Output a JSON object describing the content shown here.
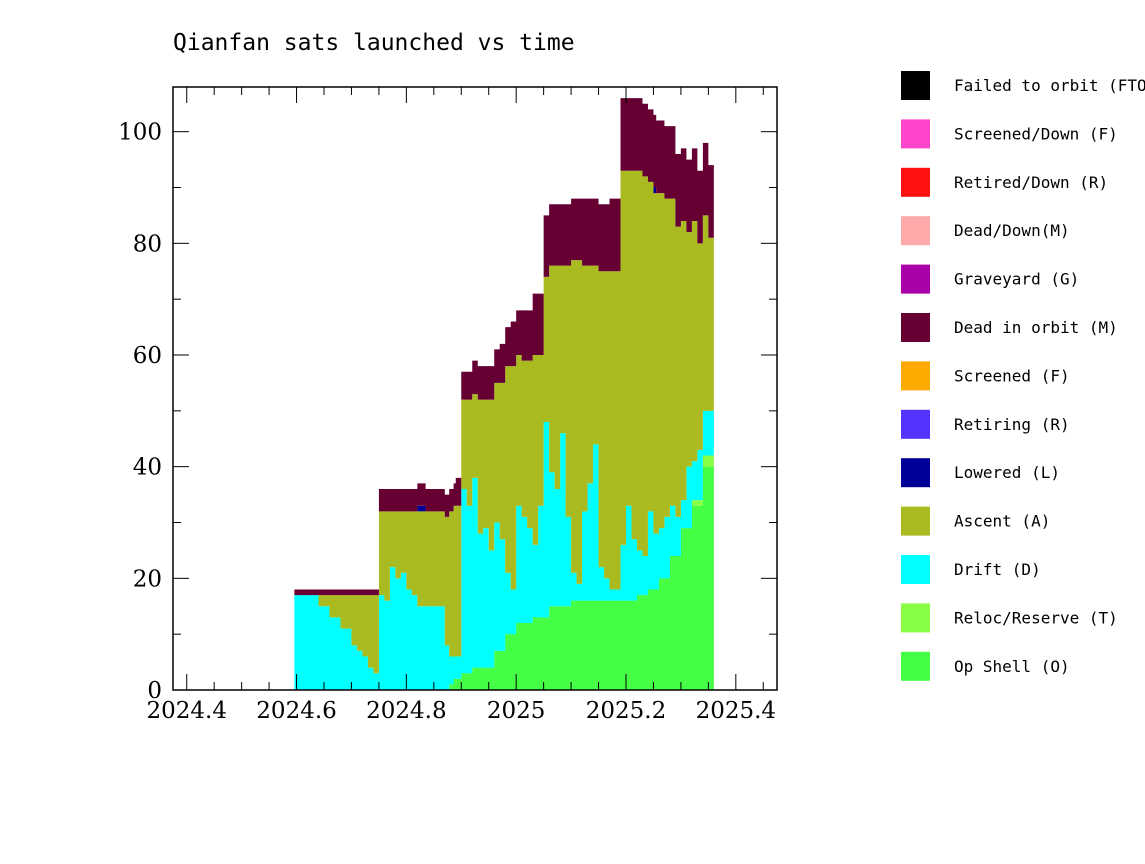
{
  "chart_data": {
    "type": "area",
    "title": "Qianfan sats launched vs time",
    "xlabel": "",
    "ylabel": "",
    "xlim": [
      2024.375,
      2025.475
    ],
    "ylim": [
      0,
      108
    ],
    "x_ticks": [
      {
        "value": 2024.4,
        "label": "2024.4"
      },
      {
        "value": 2024.6,
        "label": "2024.6"
      },
      {
        "value": 2024.8,
        "label": "2024.8"
      },
      {
        "value": 2025.0,
        "label": "2025"
      },
      {
        "value": 2025.2,
        "label": "2025.2"
      },
      {
        "value": 2025.4,
        "label": "2025.4"
      }
    ],
    "y_ticks": [
      {
        "value": 0,
        "label": "0"
      },
      {
        "value": 20,
        "label": "20"
      },
      {
        "value": 40,
        "label": "40"
      },
      {
        "value": 60,
        "label": "60"
      },
      {
        "value": 80,
        "label": "80"
      },
      {
        "value": 100,
        "label": "100"
      }
    ],
    "grid": false,
    "legend_position": "right",
    "legend": [
      {
        "label": "Failed to orbit (FTO)",
        "color": "#000000"
      },
      {
        "label": "Screened/Down (F)",
        "color": "#ff44cc"
      },
      {
        "label": "Retired/Down (R)",
        "color": "#ff1111"
      },
      {
        "label": "Dead/Down(M)",
        "color": "#ffaaaa"
      },
      {
        "label": "Graveyard (G)",
        "color": "#aa00aa"
      },
      {
        "label": "Dead in orbit (M)",
        "color": "#660033"
      },
      {
        "label": "Screened (F)",
        "color": "#ffaa00"
      },
      {
        "label": "Retiring (R)",
        "color": "#5533ff"
      },
      {
        "label": "Lowered (L)",
        "color": "#000099"
      },
      {
        "label": "Ascent (A)",
        "color": "#aabb22"
      },
      {
        "label": "Drift (D)",
        "color": "#00ffff"
      },
      {
        "label": "Reloc/Reserve (T)",
        "color": "#88ff44"
      },
      {
        "label": "Op Shell (O)",
        "color": "#44ff44"
      }
    ],
    "series": [
      {
        "name": "Op Shell (O)",
        "color": "#44ff44",
        "x": [
          2024.596,
          2024.87,
          2024.878,
          2024.886,
          2024.894,
          2024.9,
          2024.92,
          2024.94,
          2024.96,
          2024.98,
          2025.0,
          2025.03,
          2025.06,
          2025.1,
          2025.14,
          2025.18,
          2025.2,
          2025.22,
          2025.24,
          2025.26,
          2025.28,
          2025.3,
          2025.32,
          2025.34,
          2025.36
        ],
        "values": [
          0,
          0,
          1,
          2,
          2,
          3,
          4,
          4,
          7,
          10,
          12,
          13,
          15,
          16,
          16,
          16,
          16,
          17,
          18,
          20,
          24,
          29,
          33,
          40,
          48
        ]
      },
      {
        "name": "Reloc/Reserve (T)",
        "color": "#88ff44",
        "x": [
          2024.596,
          2025.3,
          2025.32,
          2025.34,
          2025.36
        ],
        "values": [
          0,
          0,
          1,
          2,
          2
        ]
      },
      {
        "name": "Drift (D)",
        "color": "#00ffff",
        "x": [
          2024.596,
          2024.62,
          2024.64,
          2024.66,
          2024.68,
          2024.7,
          2024.71,
          2024.72,
          2024.73,
          2024.74,
          2024.75,
          2024.76,
          2024.77,
          2024.78,
          2024.79,
          2024.8,
          2024.81,
          2024.82,
          2024.84,
          2024.86,
          2024.87,
          2024.878,
          2024.886,
          2024.894,
          2024.9,
          2024.91,
          2024.92,
          2024.93,
          2024.94,
          2024.95,
          2024.96,
          2024.97,
          2024.98,
          2024.99,
          2025.0,
          2025.01,
          2025.02,
          2025.03,
          2025.04,
          2025.05,
          2025.06,
          2025.07,
          2025.08,
          2025.09,
          2025.1,
          2025.11,
          2025.12,
          2025.13,
          2025.14,
          2025.15,
          2025.16,
          2025.17,
          2025.18,
          2025.19,
          2025.2,
          2025.21,
          2025.22,
          2025.23,
          2025.24,
          2025.25,
          2025.26,
          2025.27,
          2025.28,
          2025.29,
          2025.3,
          2025.31,
          2025.32,
          2025.33,
          2025.34,
          2025.35,
          2025.36
        ],
        "values": [
          17,
          17,
          15,
          13,
          11,
          8,
          7,
          6,
          4,
          3,
          17,
          16,
          22,
          20,
          21,
          18,
          17,
          15,
          15,
          15,
          8,
          5,
          4,
          4,
          33,
          30,
          34,
          24,
          25,
          21,
          23,
          20,
          11,
          8,
          21,
          19,
          17,
          13,
          20,
          35,
          24,
          21,
          31,
          16,
          5,
          3,
          16,
          21,
          28,
          6,
          4,
          2,
          2,
          10,
          17,
          11,
          8,
          7,
          14,
          10,
          9,
          11,
          9,
          7,
          5,
          11,
          7,
          9,
          8,
          8,
          18
        ]
      },
      {
        "name": "Ascent (A)",
        "color": "#aabb22",
        "x": [
          2024.596,
          2024.62,
          2024.64,
          2024.66,
          2024.68,
          2024.7,
          2024.71,
          2024.72,
          2024.73,
          2024.74,
          2024.75,
          2024.76,
          2024.77,
          2024.78,
          2024.79,
          2024.8,
          2024.81,
          2024.82,
          2024.84,
          2024.86,
          2024.87,
          2024.878,
          2024.886,
          2024.894,
          2024.9,
          2024.91,
          2024.92,
          2024.93,
          2024.94,
          2024.95,
          2024.96,
          2024.97,
          2024.98,
          2024.99,
          2025.0,
          2025.01,
          2025.02,
          2025.03,
          2025.04,
          2025.05,
          2025.06,
          2025.07,
          2025.08,
          2025.09,
          2025.1,
          2025.11,
          2025.12,
          2025.13,
          2025.14,
          2025.15,
          2025.16,
          2025.17,
          2025.18,
          2025.19,
          2025.2,
          2025.21,
          2025.22,
          2025.23,
          2025.24,
          2025.25,
          2025.26,
          2025.27,
          2025.28,
          2025.29,
          2025.3,
          2025.31,
          2025.32,
          2025.33,
          2025.34,
          2025.35,
          2025.36
        ],
        "values": [
          0,
          0,
          2,
          4,
          6,
          9,
          10,
          11,
          13,
          14,
          15,
          16,
          10,
          12,
          11,
          14,
          15,
          17,
          17,
          17,
          23,
          26,
          27,
          27,
          16,
          19,
          15,
          24,
          23,
          27,
          25,
          28,
          37,
          40,
          27,
          28,
          30,
          34,
          27,
          26,
          37,
          40,
          30,
          45,
          56,
          58,
          44,
          39,
          32,
          53,
          55,
          57,
          57,
          67,
          60,
          66,
          68,
          68,
          59,
          61,
          60,
          57,
          55,
          52,
          50,
          42,
          43,
          37,
          35,
          31,
          11
        ]
      },
      {
        "name": "Lowered (L)",
        "color": "#000099",
        "x": [
          2024.596,
          2024.815,
          2024.82,
          2024.83,
          2024.835,
          2025.245,
          2025.25,
          2025.255
        ],
        "values": [
          0,
          0,
          1,
          1,
          0,
          0,
          1,
          0
        ]
      },
      {
        "name": "Dead in orbit (M)",
        "color": "#660033",
        "x": [
          2024.596,
          2024.75,
          2024.87,
          2024.89,
          2024.9,
          2024.92,
          2024.95,
          2024.97,
          2024.99,
          2025.01,
          2025.03,
          2025.06,
          2025.12,
          2025.16,
          2025.17,
          2025.19,
          2025.36
        ],
        "values": [
          1,
          4,
          4,
          5,
          5,
          6,
          6,
          7,
          8,
          9,
          11,
          11,
          12,
          12,
          13,
          13,
          13
        ]
      }
    ]
  }
}
